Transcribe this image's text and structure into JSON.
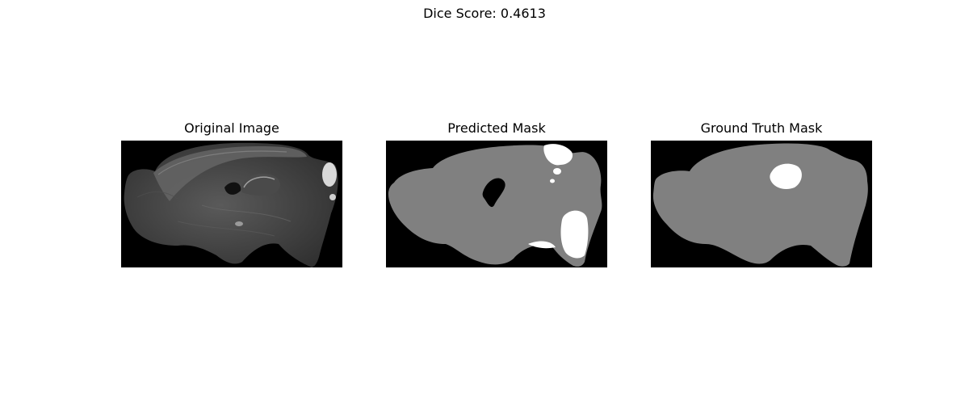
{
  "figure": {
    "suptitle": "Dice Score: 0.4613",
    "panels": [
      {
        "title": "Original Image",
        "content": "grayscale sagittal brain section"
      },
      {
        "title": "Predicted Mask",
        "content": "gray tissue mask with white predicted regions"
      },
      {
        "title": "Ground Truth Mask",
        "content": "gray tissue mask with single white region"
      }
    ]
  },
  "colors": {
    "background": "#000000",
    "tissue": "#808080",
    "label": "#ffffff"
  }
}
